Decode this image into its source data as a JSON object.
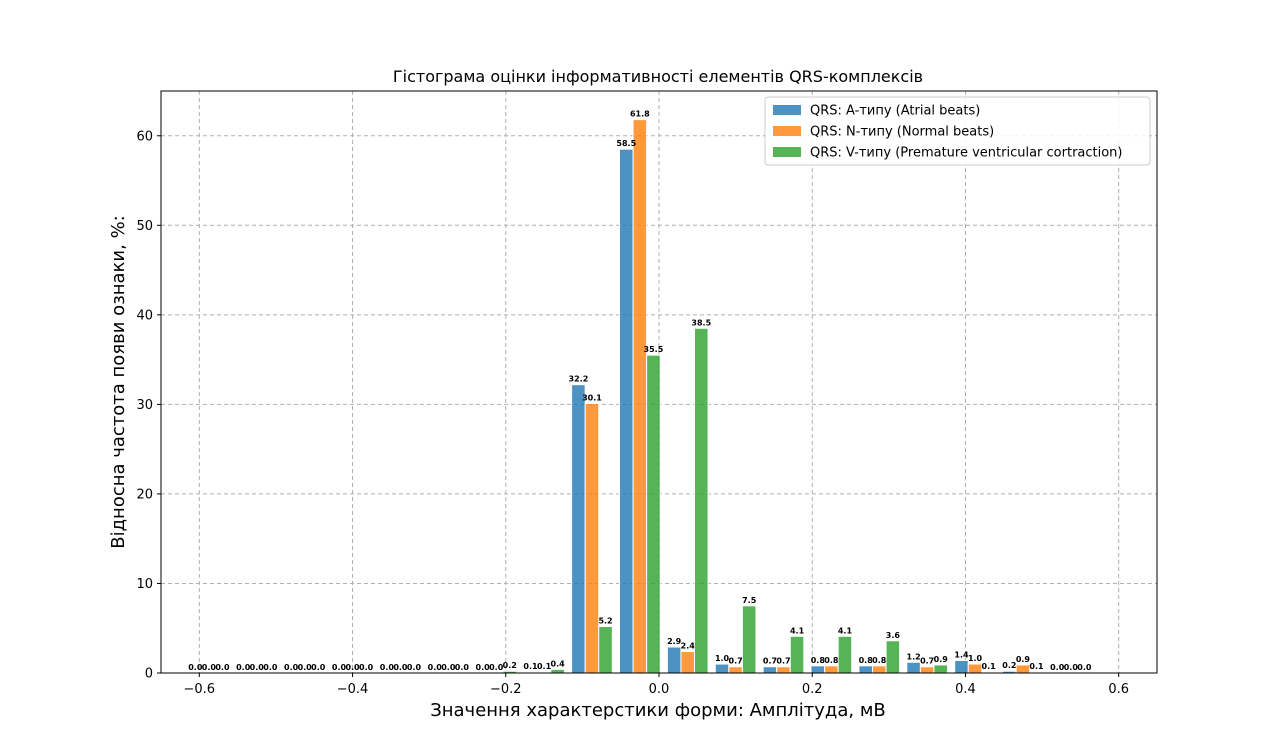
{
  "chart_data": {
    "type": "bar",
    "title": "Гістограма оцінки інформативності елементів QRS-комплексів",
    "xlabel": "Значення характерстики форми: Амплітуда, мВ",
    "ylabel": "Відносна частота появи ознаки, %:",
    "xlim": [
      -0.65,
      0.65
    ],
    "ylim": [
      0,
      65
    ],
    "xticks": [
      -0.6,
      -0.4,
      -0.2,
      0.0,
      0.2,
      0.4,
      0.6
    ],
    "xtick_labels": [
      "−0.6",
      "−0.4",
      "−0.2",
      "0.0",
      "0.2",
      "0.4",
      "0.6"
    ],
    "yticks": [
      0,
      10,
      20,
      30,
      40,
      50,
      60
    ],
    "ytick_labels": [
      "0",
      "10",
      "20",
      "30",
      "40",
      "50",
      "60"
    ],
    "grid": true,
    "legend_position": "top-right",
    "bin_centers": [
      -0.5875,
      -0.525,
      -0.4625,
      -0.4,
      -0.3375,
      -0.275,
      -0.2125,
      -0.15,
      -0.0875,
      -0.025,
      0.0375,
      0.1,
      0.1625,
      0.225,
      0.2875,
      0.35,
      0.4125,
      0.475,
      0.5375
    ],
    "series": [
      {
        "name": "QRS: A-типу (Atrial beats)",
        "color": "#1f77b4",
        "values": [
          0.0,
          0.0,
          0.0,
          0.0,
          0.0,
          0.0,
          0.0,
          0.1,
          32.2,
          58.5,
          2.9,
          1.0,
          0.7,
          0.8,
          0.8,
          1.2,
          1.4,
          0.2,
          0.0
        ],
        "labels": [
          "0.0",
          "0.0",
          "0.0",
          "0.0",
          "0.0",
          "0.0",
          "0.0",
          "0.1",
          "32.2",
          "58.5",
          "2.9",
          "1.0",
          "0.7",
          "0.8",
          "0.8",
          "1.2",
          "1.4",
          "0.2",
          "0.0"
        ]
      },
      {
        "name": "QRS: N-типу (Normal beats)",
        "color": "#ff7f0e",
        "values": [
          0.0,
          0.0,
          0.0,
          0.0,
          0.0,
          0.0,
          0.0,
          0.1,
          30.1,
          61.8,
          2.4,
          0.7,
          0.7,
          0.8,
          0.8,
          0.7,
          1.0,
          0.9,
          0.0
        ],
        "labels": [
          "0.0",
          "0.0",
          "0.0",
          "0.0",
          "0.0",
          "0.0",
          "0.0",
          "0.1",
          "30.1",
          "61.8",
          "2.4",
          "0.7",
          "0.7",
          "0.8",
          "0.8",
          "0.7",
          "1.0",
          "0.9",
          "0.0"
        ]
      },
      {
        "name": "QRS: V-типу (Premature ventricular cortraction)",
        "color": "#2ca02c",
        "values": [
          0.0,
          0.0,
          0.0,
          0.0,
          0.0,
          0.0,
          0.2,
          0.4,
          5.2,
          35.5,
          38.5,
          7.5,
          4.1,
          4.1,
          3.6,
          0.9,
          0.1,
          0.1,
          0.0
        ],
        "labels": [
          "0.0",
          "0.0",
          "0.0",
          "0.0",
          "0.0",
          "0.0",
          "0.2",
          "0.4",
          "5.2",
          "35.5",
          "38.5",
          "7.5",
          "4.1",
          "4.1",
          "3.6",
          "0.9",
          "0.1",
          "0.1",
          "0.0"
        ]
      }
    ]
  }
}
